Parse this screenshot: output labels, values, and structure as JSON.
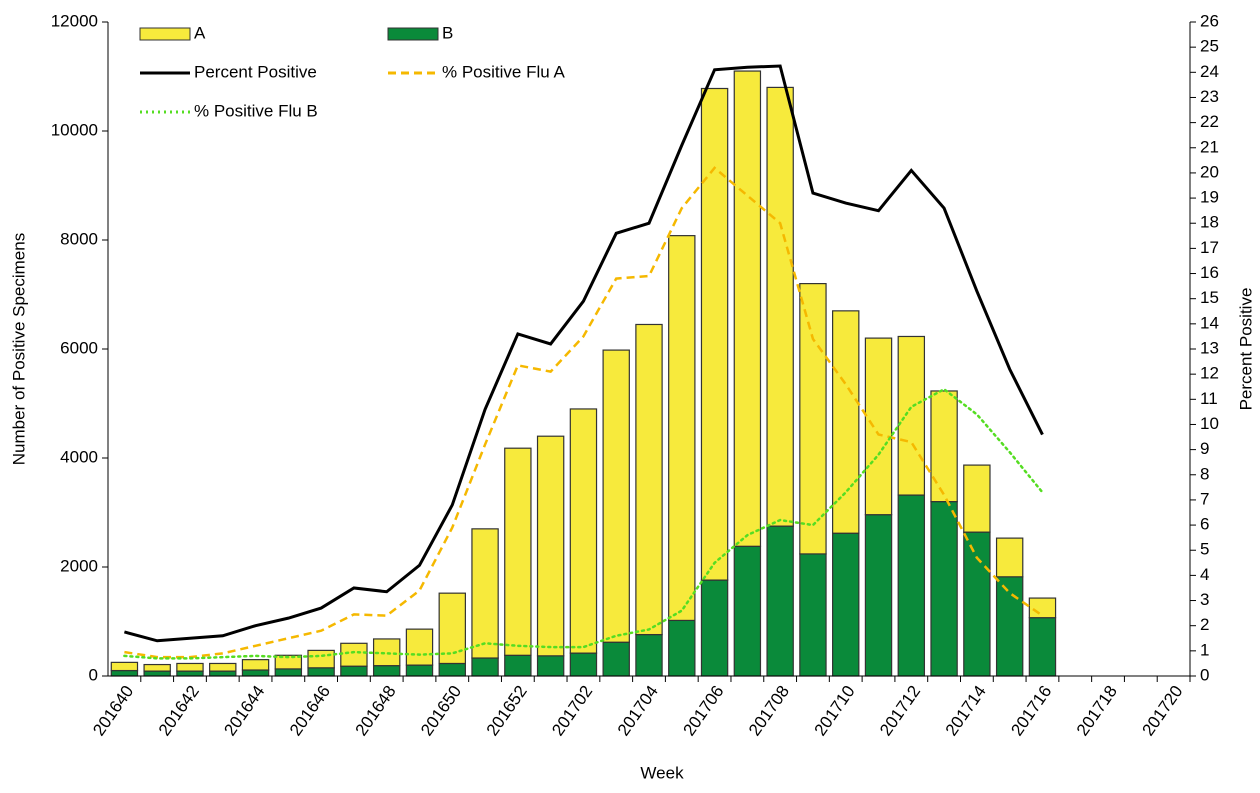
{
  "chart_data": {
    "type": "bar",
    "stacked": true,
    "x_label": "Week",
    "y_label": "Number of Positive Specimens",
    "y2_label": "Percent Positive",
    "categories": [
      "201640",
      null,
      "201642",
      null,
      "201644",
      null,
      "201646",
      null,
      "201648",
      null,
      "201650",
      null,
      "201652",
      null,
      "201702",
      null,
      "201704",
      null,
      "201706",
      null,
      "201708",
      null,
      "201710",
      null,
      "201712",
      null,
      "201714",
      null,
      "201716",
      null,
      "201718",
      null,
      "201720"
    ],
    "ylim": [
      0,
      12000
    ],
    "yticks": [
      0,
      2000,
      4000,
      6000,
      8000,
      10000,
      12000
    ],
    "y2lim": [
      0,
      26
    ],
    "y2ticks": [
      0,
      1,
      2,
      3,
      4,
      5,
      6,
      7,
      8,
      9,
      10,
      11,
      12,
      13,
      14,
      15,
      16,
      17,
      18,
      19,
      20,
      21,
      22,
      23,
      24,
      25,
      26
    ],
    "series": [
      {
        "name": "B",
        "color": "#0a8a3a",
        "kind": "bar",
        "values": [
          100,
          90,
          90,
          90,
          110,
          130,
          150,
          180,
          190,
          200,
          230,
          330,
          380,
          370,
          420,
          620,
          760,
          1020,
          1760,
          2380,
          2750,
          2240,
          2620,
          2960,
          3320,
          3200,
          2640,
          1820,
          1070,
          null,
          null,
          null,
          null
        ]
      },
      {
        "name": "A",
        "color": "#f7ea3c",
        "kind": "bar",
        "values": [
          150,
          120,
          140,
          140,
          190,
          250,
          320,
          420,
          490,
          660,
          1290,
          2370,
          3800,
          4030,
          4480,
          5360,
          5690,
          7060,
          9020,
          8720,
          8050,
          4960,
          4080,
          3240,
          2910,
          2030,
          1230,
          710,
          360,
          null,
          null,
          null,
          null
        ]
      },
      {
        "name": "Percent Positive",
        "color": "#000000",
        "kind": "line",
        "dash": "solid",
        "axis": "y2",
        "values": [
          1.75,
          1.4,
          1.5,
          1.6,
          2.0,
          2.3,
          2.7,
          3.5,
          3.35,
          4.4,
          6.8,
          10.6,
          13.6,
          13.2,
          14.9,
          17.6,
          18.0,
          21.1,
          24.1,
          24.2,
          24.25,
          19.2,
          18.8,
          18.5,
          20.1,
          18.6,
          15.3,
          12.2,
          9.6,
          null,
          null,
          null,
          null
        ]
      },
      {
        "name": "% Positive Flu A",
        "color": "#f5b800",
        "kind": "line",
        "dash": "dashed",
        "axis": "y2",
        "values": [
          0.95,
          0.75,
          0.75,
          0.9,
          1.2,
          1.5,
          1.8,
          2.45,
          2.4,
          3.4,
          5.9,
          9.2,
          12.35,
          12.1,
          13.5,
          15.8,
          15.9,
          18.6,
          20.2,
          19.1,
          18.0,
          13.4,
          11.6,
          9.6,
          9.3,
          7.2,
          4.7,
          3.3,
          2.4,
          null,
          null,
          null,
          null
        ]
      },
      {
        "name": "% Positive Flu B",
        "color": "#55dd22",
        "kind": "line",
        "dash": "dotted",
        "axis": "y2",
        "values": [
          0.8,
          0.7,
          0.7,
          0.75,
          0.8,
          0.75,
          0.8,
          0.95,
          0.9,
          0.85,
          0.9,
          1.3,
          1.2,
          1.15,
          1.15,
          1.6,
          1.85,
          2.6,
          4.5,
          5.6,
          6.2,
          6.0,
          7.3,
          8.8,
          10.7,
          11.4,
          10.4,
          8.9,
          7.3,
          null,
          null,
          null,
          null
        ]
      }
    ]
  }
}
